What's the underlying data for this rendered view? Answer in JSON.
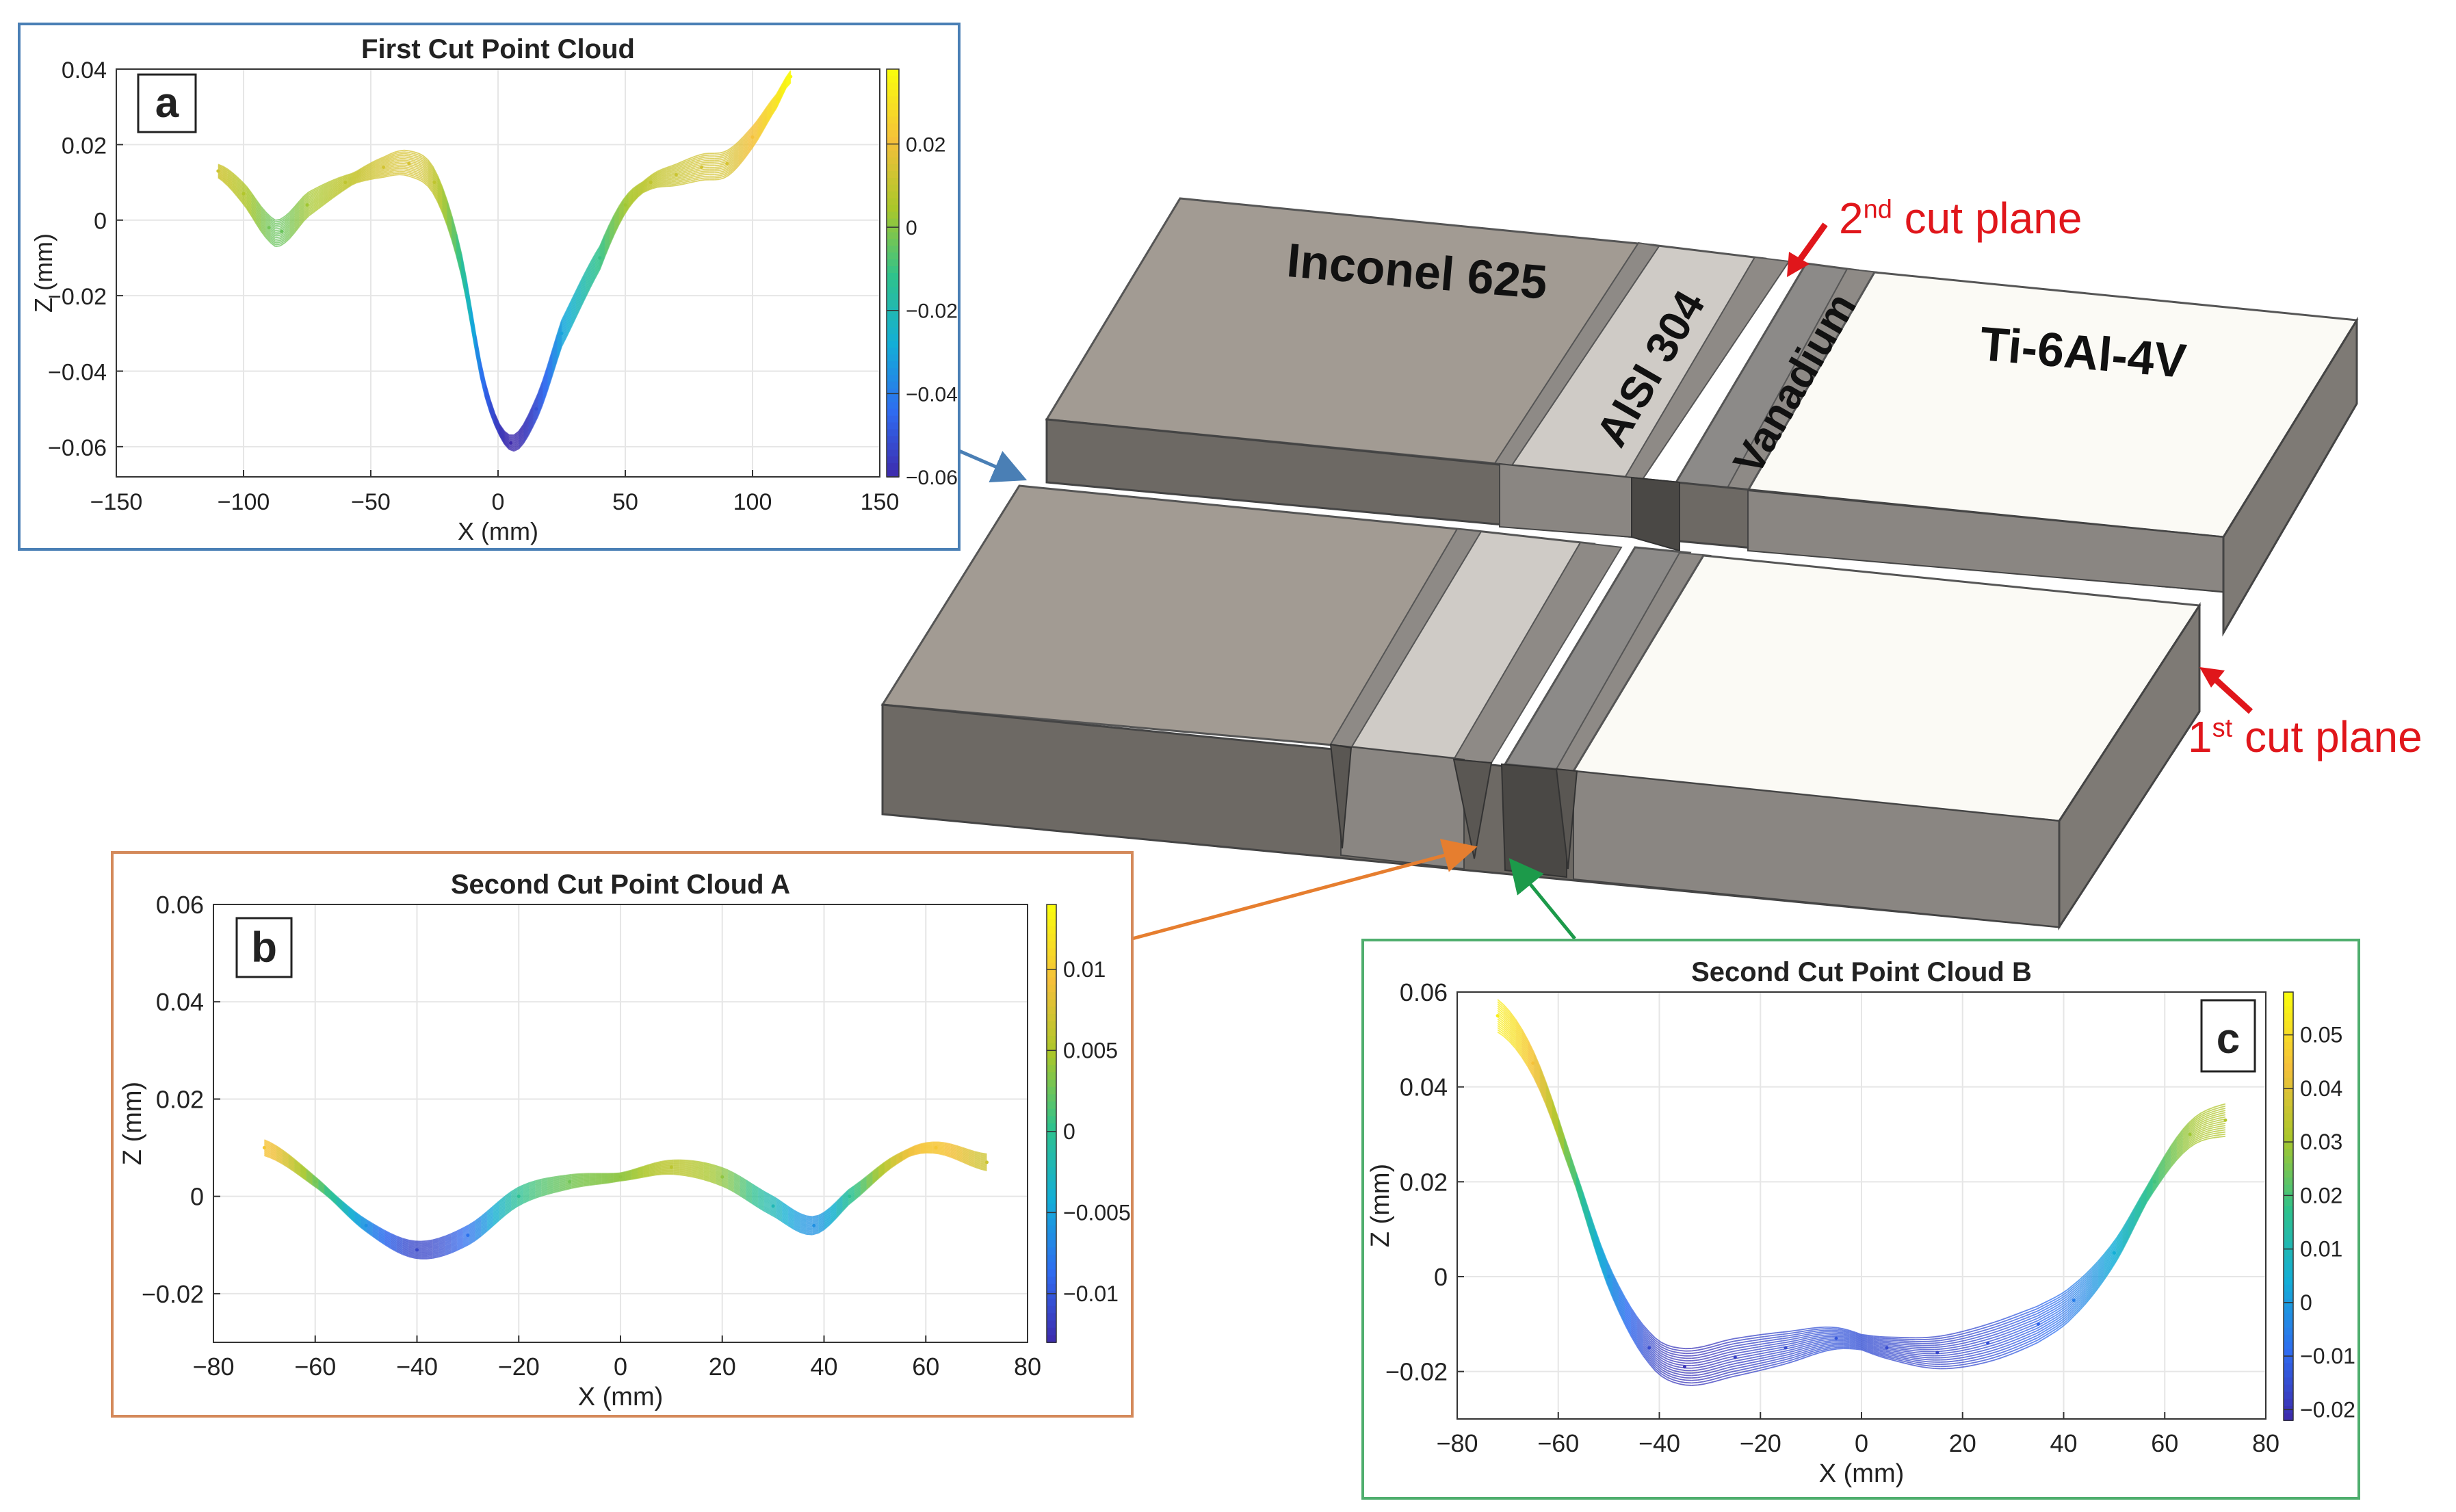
{
  "materials": {
    "inconel": "Inconel 625",
    "aisi": "AISI 304",
    "vanadium": "Vanadium",
    "ti": "Ti-6Al-4V"
  },
  "cut_planes": {
    "second": {
      "ordinal": "2",
      "suffix": "nd",
      "text": "cut plane"
    },
    "first": {
      "ordinal": "1",
      "suffix": "st",
      "text": "cut plane"
    }
  },
  "colors": {
    "panel_a_border": "#4a7fb5",
    "panel_b_border": "#d4895a",
    "panel_c_border": "#4fae6e",
    "cut_plane_red": "#e0161b",
    "colormap": [
      "#3e26a8",
      "#2f6bf0",
      "#13aed7",
      "#2fc28c",
      "#aac72a",
      "#f5c03a",
      "#f9fb0e"
    ]
  },
  "chart_data": [
    {
      "id": "a",
      "type": "line",
      "title": "First Cut Point Cloud",
      "panel_label": "a",
      "xlabel": "X (mm)",
      "ylabel": "Z (mm)",
      "xlim": [
        -150,
        150
      ],
      "ylim": [
        -0.068,
        0.04
      ],
      "xticks": [
        -150,
        -100,
        -50,
        0,
        50,
        100,
        150
      ],
      "xtick_labels": [
        "−150",
        "−100",
        "−50",
        "0",
        "50",
        "100",
        "150"
      ],
      "yticks": [
        -0.06,
        -0.04,
        -0.02,
        0,
        0.02,
        0.04
      ],
      "ytick_labels": [
        "−0.06",
        "−0.04",
        "−0.02",
        "0",
        "0.02",
        "0.04"
      ],
      "colorbar": {
        "lim": [
          -0.06,
          0.038
        ],
        "ticks": [
          -0.06,
          -0.04,
          -0.02,
          0,
          0.02
        ],
        "labels": [
          "−0.06",
          "−0.04",
          "−0.02",
          "0",
          "0.02"
        ]
      },
      "spread": 0.007,
      "x": [
        -110,
        -100,
        -90,
        -85,
        -75,
        -60,
        -45,
        -35,
        -25,
        -15,
        -5,
        5,
        15,
        25,
        40,
        50,
        60,
        70,
        80,
        90,
        100,
        110,
        115
      ],
      "y": [
        0.013,
        0.007,
        -0.002,
        -0.003,
        0.004,
        0.01,
        0.014,
        0.015,
        0.01,
        -0.01,
        -0.045,
        -0.059,
        -0.05,
        -0.03,
        -0.01,
        0.004,
        0.01,
        0.012,
        0.014,
        0.015,
        0.022,
        0.032,
        0.038
      ]
    },
    {
      "id": "b",
      "type": "line",
      "title": "Second Cut Point Cloud A",
      "panel_label": "b",
      "xlabel": "X (mm)",
      "ylabel": "Z (mm)",
      "xlim": [
        -80,
        80
      ],
      "ylim": [
        -0.03,
        0.06
      ],
      "xticks": [
        -80,
        -60,
        -40,
        -20,
        0,
        20,
        40,
        60,
        80
      ],
      "xtick_labels": [
        "−80",
        "−60",
        "−40",
        "−20",
        "0",
        "20",
        "40",
        "60",
        "80"
      ],
      "yticks": [
        -0.02,
        0,
        0.02,
        0.04,
        0.06
      ],
      "ytick_labels": [
        "−0.02",
        "0",
        "0.02",
        "0.04",
        "0.06"
      ],
      "colorbar": {
        "lim": [
          -0.013,
          0.014
        ],
        "ticks": [
          -0.01,
          -0.005,
          0,
          0.005,
          0.01
        ],
        "labels": [
          "−0.01",
          "−0.005",
          "0",
          "0.005",
          "0.01"
        ]
      },
      "spread": 0.004,
      "x": [
        -70,
        -60,
        -50,
        -40,
        -30,
        -20,
        -10,
        0,
        10,
        20,
        30,
        38,
        45,
        55,
        62,
        72
      ],
      "y": [
        0.01,
        0.003,
        -0.006,
        -0.011,
        -0.008,
        0.0,
        0.003,
        0.004,
        0.006,
        0.004,
        -0.002,
        -0.006,
        0.0,
        0.008,
        0.01,
        0.007
      ]
    },
    {
      "id": "c",
      "type": "line",
      "title": "Second Cut Point Cloud B",
      "panel_label": "c",
      "xlabel": "X (mm)",
      "ylabel": "Z (mm)",
      "xlim": [
        -80,
        80
      ],
      "ylim": [
        -0.03,
        0.06
      ],
      "xticks": [
        -80,
        -60,
        -40,
        -20,
        0,
        20,
        40,
        60,
        80
      ],
      "xtick_labels": [
        "−80",
        "−60",
        "−40",
        "−20",
        "0",
        "20",
        "40",
        "60",
        "80"
      ],
      "yticks": [
        -0.02,
        0,
        0.02,
        0.04,
        0.06
      ],
      "ytick_labels": [
        "−0.02",
        "0",
        "0.02",
        "0.04",
        "0.06"
      ],
      "colorbar": {
        "lim": [
          -0.022,
          0.058
        ],
        "ticks": [
          -0.02,
          -0.01,
          0,
          0.01,
          0.02,
          0.03,
          0.04,
          0.05
        ],
        "labels": [
          "−0.02",
          "−0.01",
          "0",
          "0.01",
          "0.02",
          "0.03",
          "0.04",
          "0.05"
        ]
      },
      "spread": 0.008,
      "x": [
        -72,
        -65,
        -58,
        -50,
        -42,
        -35,
        -25,
        -15,
        -5,
        5,
        15,
        25,
        35,
        42,
        50,
        58,
        65,
        72
      ],
      "y": [
        0.055,
        0.045,
        0.025,
        0.0,
        -0.015,
        -0.019,
        -0.017,
        -0.015,
        -0.013,
        -0.015,
        -0.016,
        -0.014,
        -0.01,
        -0.005,
        0.005,
        0.02,
        0.03,
        0.033
      ]
    }
  ]
}
